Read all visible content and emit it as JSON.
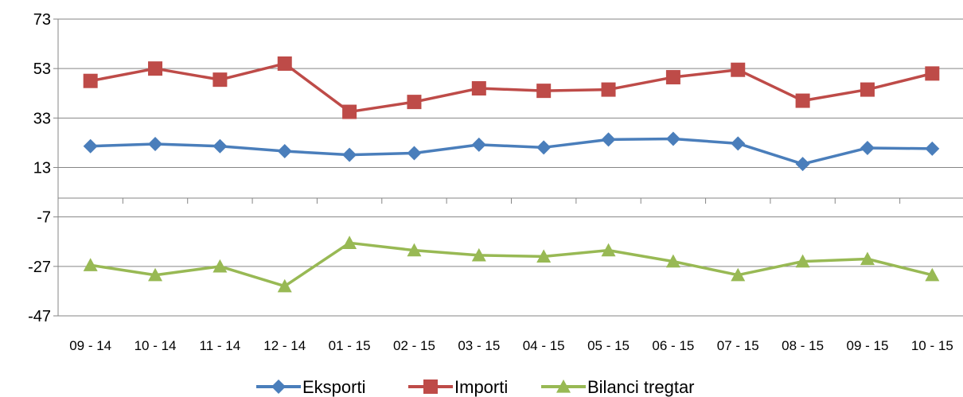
{
  "chart_data": {
    "type": "line",
    "categories": [
      "09 - 14",
      "10 - 14",
      "11 - 14",
      "12 - 14",
      "01 - 15",
      "02 - 15",
      "03 - 15",
      "04 - 15",
      "05 - 15",
      "06 - 15",
      "07 - 15",
      "08 - 15",
      "09 - 15",
      "10 - 15"
    ],
    "yticks": [
      73,
      53,
      33,
      13,
      -7,
      -27,
      -47
    ],
    "ylim": [
      -47,
      73
    ],
    "grid": true,
    "legend_position": "bottom",
    "series": [
      {
        "name": "Eksporti",
        "color": "#4a7ebb",
        "marker": "diamond",
        "values": [
          21.6,
          22.5,
          21.6,
          19.6,
          18.1,
          18.8,
          22.2,
          21.1,
          24.3,
          24.6,
          22.7,
          14.4,
          20.9,
          20.6
        ]
      },
      {
        "name": "Importi",
        "color": "#be4b48",
        "marker": "square",
        "values": [
          48.0,
          53.0,
          48.5,
          55.0,
          35.5,
          39.5,
          45.0,
          44.0,
          44.5,
          49.5,
          52.5,
          40.0,
          44.5,
          51.0
        ]
      },
      {
        "name": "Bilanci tregtar",
        "color": "#98b954",
        "marker": "triangle",
        "values": [
          -26.5,
          -30.5,
          -27.0,
          -35.0,
          -17.5,
          -20.5,
          -22.5,
          -23.0,
          -20.5,
          -25.0,
          -30.5,
          -25.0,
          -24.0,
          -30.5
        ]
      }
    ]
  }
}
